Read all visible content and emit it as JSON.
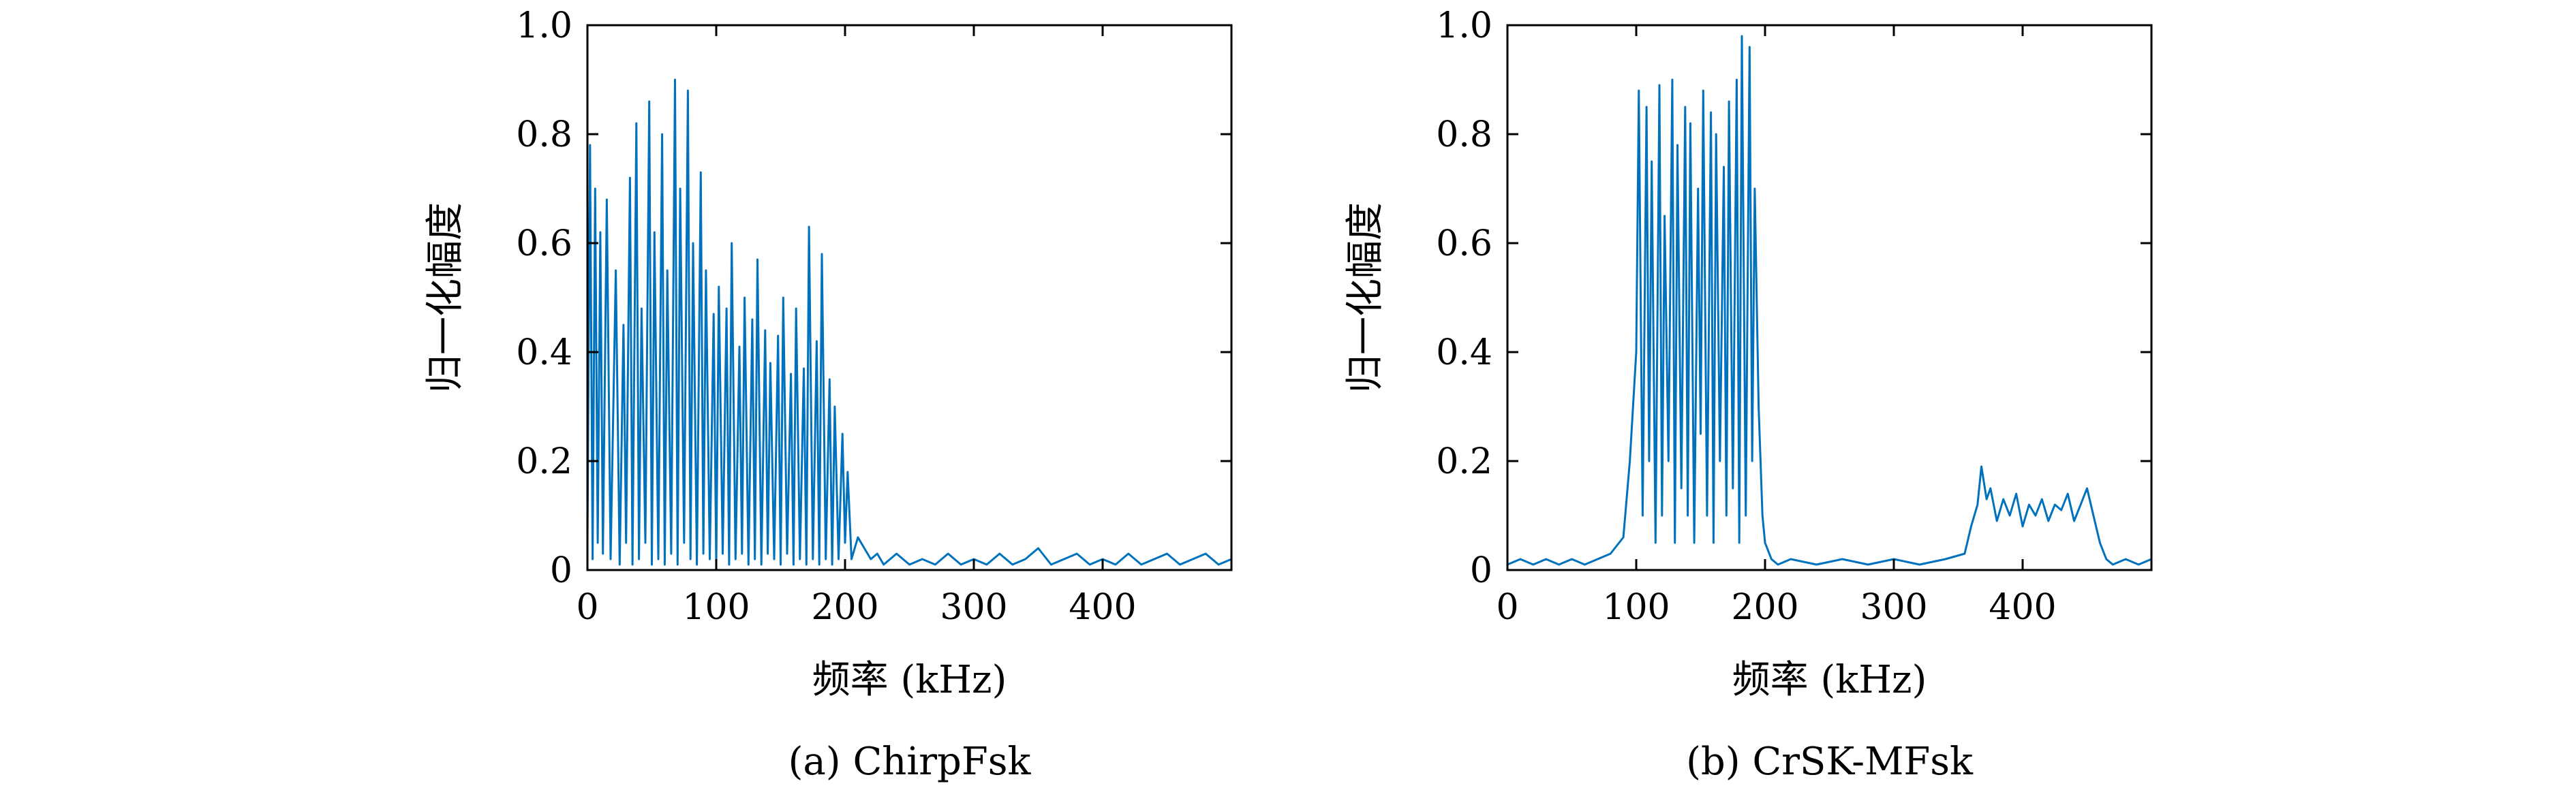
{
  "colors": {
    "line": "#0072BD",
    "axis": "#000000",
    "background": "#ffffff"
  },
  "chart_data": [
    {
      "type": "line",
      "caption": "(a) ChirpFsk",
      "xlabel": "频率 (kHz)",
      "ylabel": "归一化幅度",
      "xlim": [
        0,
        500
      ],
      "ylim": [
        0,
        1.0
      ],
      "xticks": [
        0,
        100,
        200,
        300,
        400
      ],
      "xtick_labels": [
        "0",
        "100",
        "200",
        "300",
        "400"
      ],
      "yticks": [
        0,
        0.2,
        0.4,
        0.6,
        0.8,
        1.0
      ],
      "ytick_labels": [
        "0",
        "0.2",
        "0.4",
        "0.6",
        "0.8",
        "1.0"
      ],
      "grid": false,
      "series": [
        {
          "x": [
            0,
            2,
            4,
            6,
            8,
            10,
            12,
            15,
            18,
            22,
            25,
            28,
            30,
            33,
            35,
            38,
            40,
            42,
            45,
            48,
            50,
            52,
            55,
            58,
            60,
            62,
            65,
            68,
            70,
            72,
            75,
            78,
            80,
            82,
            85,
            88,
            90,
            92,
            95,
            98,
            100,
            102,
            105,
            108,
            110,
            112,
            115,
            118,
            120,
            122,
            125,
            128,
            130,
            132,
            135,
            138,
            140,
            142,
            145,
            148,
            150,
            152,
            155,
            158,
            160,
            162,
            165,
            168,
            170,
            172,
            175,
            178,
            180,
            182,
            185,
            188,
            190,
            192,
            195,
            198,
            200,
            202,
            205,
            210,
            215,
            220,
            225,
            230,
            240,
            250,
            260,
            270,
            280,
            290,
            300,
            310,
            320,
            330,
            340,
            350,
            360,
            370,
            380,
            390,
            400,
            410,
            420,
            430,
            440,
            450,
            460,
            470,
            480,
            490,
            500
          ],
          "y": [
            0.05,
            0.78,
            0.02,
            0.7,
            0.05,
            0.62,
            0.03,
            0.68,
            0.02,
            0.55,
            0.01,
            0.45,
            0.05,
            0.72,
            0.01,
            0.82,
            0.02,
            0.48,
            0.05,
            0.86,
            0.01,
            0.62,
            0.02,
            0.8,
            0.01,
            0.55,
            0.03,
            0.9,
            0.01,
            0.7,
            0.05,
            0.88,
            0.02,
            0.6,
            0.01,
            0.73,
            0.03,
            0.55,
            0.02,
            0.47,
            0.01,
            0.52,
            0.03,
            0.48,
            0.01,
            0.6,
            0.02,
            0.41,
            0.03,
            0.5,
            0.01,
            0.46,
            0.02,
            0.57,
            0.01,
            0.44,
            0.03,
            0.38,
            0.02,
            0.43,
            0.01,
            0.5,
            0.03,
            0.36,
            0.01,
            0.48,
            0.02,
            0.37,
            0.01,
            0.63,
            0.02,
            0.42,
            0.01,
            0.58,
            0.02,
            0.35,
            0.01,
            0.3,
            0.02,
            0.25,
            0.05,
            0.18,
            0.02,
            0.06,
            0.04,
            0.02,
            0.03,
            0.01,
            0.03,
            0.01,
            0.02,
            0.01,
            0.03,
            0.01,
            0.02,
            0.01,
            0.03,
            0.01,
            0.02,
            0.04,
            0.01,
            0.02,
            0.03,
            0.01,
            0.02,
            0.01,
            0.03,
            0.01,
            0.02,
            0.03,
            0.01,
            0.02,
            0.03,
            0.01,
            0.02
          ]
        }
      ]
    },
    {
      "type": "line",
      "caption": "(b) CrSK-MFsk",
      "xlabel": "频率 (kHz)",
      "ylabel": "归一化幅度",
      "xlim": [
        0,
        500
      ],
      "ylim": [
        0,
        1.0
      ],
      "xticks": [
        0,
        100,
        200,
        300,
        400
      ],
      "xtick_labels": [
        "0",
        "100",
        "200",
        "300",
        "400"
      ],
      "yticks": [
        0,
        0.2,
        0.4,
        0.6,
        0.8,
        1.0
      ],
      "ytick_labels": [
        "0",
        "0.2",
        "0.4",
        "0.6",
        "0.8",
        "1.0"
      ],
      "grid": false,
      "series": [
        {
          "x": [
            0,
            10,
            20,
            30,
            40,
            50,
            60,
            70,
            80,
            90,
            95,
            100,
            102,
            105,
            108,
            110,
            112,
            115,
            118,
            120,
            122,
            125,
            128,
            130,
            132,
            135,
            138,
            140,
            142,
            145,
            148,
            150,
            152,
            155,
            158,
            160,
            162,
            165,
            168,
            170,
            172,
            175,
            178,
            180,
            182,
            185,
            188,
            190,
            192,
            195,
            198,
            200,
            205,
            210,
            220,
            240,
            260,
            280,
            300,
            320,
            340,
            355,
            360,
            365,
            368,
            372,
            375,
            380,
            385,
            390,
            395,
            400,
            405,
            410,
            415,
            420,
            425,
            430,
            435,
            440,
            445,
            450,
            455,
            460,
            465,
            470,
            480,
            490,
            500
          ],
          "y": [
            0.01,
            0.02,
            0.01,
            0.02,
            0.01,
            0.02,
            0.01,
            0.02,
            0.03,
            0.06,
            0.2,
            0.4,
            0.88,
            0.1,
            0.85,
            0.2,
            0.75,
            0.05,
            0.89,
            0.1,
            0.65,
            0.2,
            0.9,
            0.05,
            0.78,
            0.15,
            0.85,
            0.1,
            0.82,
            0.05,
            0.7,
            0.25,
            0.88,
            0.1,
            0.84,
            0.05,
            0.8,
            0.2,
            0.74,
            0.1,
            0.86,
            0.15,
            0.9,
            0.05,
            0.98,
            0.1,
            0.96,
            0.2,
            0.7,
            0.3,
            0.1,
            0.05,
            0.02,
            0.01,
            0.02,
            0.01,
            0.02,
            0.01,
            0.02,
            0.01,
            0.02,
            0.03,
            0.08,
            0.12,
            0.19,
            0.13,
            0.15,
            0.09,
            0.13,
            0.1,
            0.14,
            0.08,
            0.12,
            0.1,
            0.13,
            0.09,
            0.12,
            0.11,
            0.14,
            0.09,
            0.12,
            0.15,
            0.1,
            0.05,
            0.02,
            0.01,
            0.02,
            0.01,
            0.02
          ]
        }
      ]
    }
  ]
}
